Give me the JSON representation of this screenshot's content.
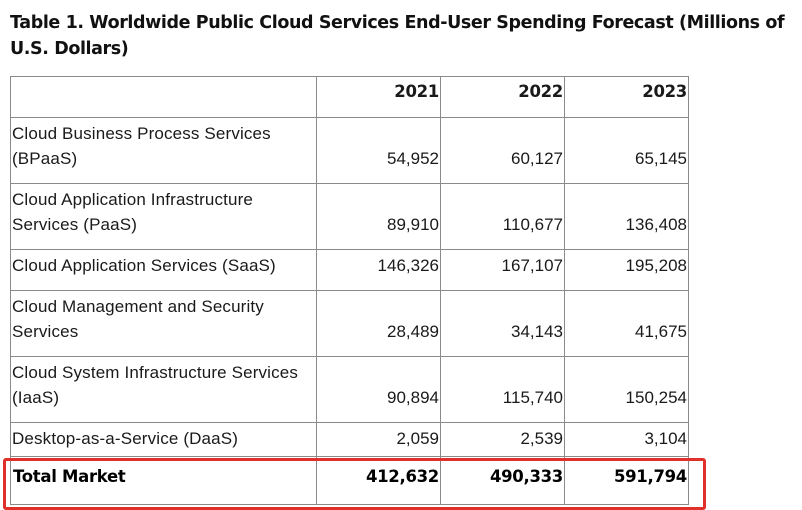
{
  "title": "Table 1. Worldwide Public Cloud Services End-User Spending Forecast (Millions of U.S. Dollars)",
  "table": {
    "columns": [
      "",
      "2021",
      "2022",
      "2023"
    ],
    "rows": [
      {
        "label": "Cloud Business Process Services (BPaaS)",
        "values": [
          "54,952",
          "60,127",
          "65,145"
        ]
      },
      {
        "label": "Cloud Application Infrastructure Services (PaaS)",
        "values": [
          "89,910",
          "110,677",
          "136,408"
        ]
      },
      {
        "label": "Cloud Application Services (SaaS)",
        "values": [
          "146,326",
          "167,107",
          "195,208"
        ]
      },
      {
        "label": "Cloud Management and Security Services",
        "values": [
          "28,489",
          "34,143",
          "41,675"
        ]
      },
      {
        "label": "Cloud System Infrastructure Services (IaaS)",
        "values": [
          "90,894",
          "115,740",
          "150,254"
        ]
      },
      {
        "label": "Desktop-as-a-Service (DaaS)",
        "values": [
          "2,059",
          "2,539",
          "3,104"
        ]
      }
    ],
    "total": {
      "label": "Total Market",
      "values": [
        "412,632",
        "490,333",
        "591,794"
      ]
    }
  },
  "highlight": {
    "target": "Total Market row",
    "color": "#e0302a"
  }
}
